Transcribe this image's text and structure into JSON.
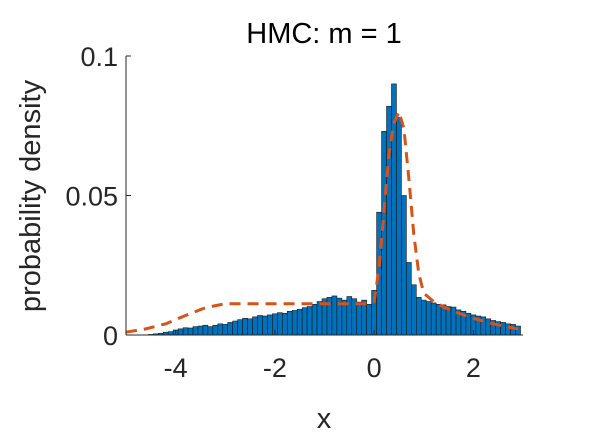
{
  "chart_data": {
    "type": "bar",
    "title": "HMC: m = 1",
    "xlabel": "x",
    "ylabel": "probability density",
    "xlim": [
      -5,
      3
    ],
    "ylim": [
      0,
      0.1
    ],
    "grid": false,
    "legend": "none",
    "x_ticks": [
      -4,
      -2,
      0,
      2
    ],
    "x_tick_labels": [
      "-4",
      "-2",
      "0",
      "2"
    ],
    "y_ticks": [
      0,
      0.05,
      0.1
    ],
    "y_tick_labels": [
      "0",
      "0.05",
      "0.1"
    ],
    "bar_width": 0.1,
    "bar_color": "#0072BD",
    "bar_edge_color": "#1a1a1a",
    "line_color": "#D95319",
    "series": [
      {
        "type": "bar",
        "x": [
          -4.5,
          -4.4,
          -4.3,
          -4.2,
          -4.1,
          -4.0,
          -3.9,
          -3.8,
          -3.7,
          -3.6,
          -3.5,
          -3.4,
          -3.3,
          -3.2,
          -3.1,
          -3.0,
          -2.9,
          -2.8,
          -2.7,
          -2.6,
          -2.5,
          -2.4,
          -2.3,
          -2.2,
          -2.1,
          -2.0,
          -1.9,
          -1.8,
          -1.7,
          -1.6,
          -1.5,
          -1.4,
          -1.3,
          -1.2,
          -1.1,
          -1.0,
          -0.9,
          -0.8,
          -0.7,
          -0.6,
          -0.5,
          -0.4,
          -0.3,
          -0.2,
          -0.1,
          0.0,
          0.1,
          0.2,
          0.3,
          0.4,
          0.5,
          0.6,
          0.7,
          0.8,
          0.9,
          1.0,
          1.1,
          1.2,
          1.3,
          1.4,
          1.5,
          1.6,
          1.7,
          1.8,
          1.9,
          2.0,
          2.1,
          2.2,
          2.3,
          2.4,
          2.5,
          2.6,
          2.7,
          2.8,
          2.9
        ],
        "values": [
          0.0002,
          0.0004,
          0.0006,
          0.001,
          0.0012,
          0.0018,
          0.0022,
          0.0026,
          0.0025,
          0.003,
          0.0032,
          0.0035,
          0.003,
          0.0035,
          0.004,
          0.0038,
          0.0045,
          0.005,
          0.0055,
          0.006,
          0.0058,
          0.0065,
          0.007,
          0.0068,
          0.0072,
          0.0076,
          0.008,
          0.0078,
          0.0085,
          0.0088,
          0.0092,
          0.0098,
          0.0102,
          0.011,
          0.012,
          0.013,
          0.0135,
          0.014,
          0.0132,
          0.0125,
          0.0138,
          0.013,
          0.0118,
          0.0125,
          0.011,
          0.016,
          0.044,
          0.073,
          0.082,
          0.09,
          0.078,
          0.05,
          0.026,
          0.018,
          0.0135,
          0.0125,
          0.012,
          0.0115,
          0.011,
          0.0108,
          0.0102,
          0.01,
          0.009,
          0.0085,
          0.0078,
          0.0072,
          0.0068,
          0.0065,
          0.0058,
          0.0052,
          0.0048,
          0.0045,
          0.004,
          0.0038,
          0.0032
        ]
      },
      {
        "type": "line",
        "style": "dashed",
        "x": [
          -5.0,
          -4.6,
          -4.2,
          -3.8,
          -3.4,
          -3.0,
          -2.6,
          -2.2,
          -1.8,
          -1.4,
          -1.0,
          -0.6,
          -0.2,
          0.0,
          0.1,
          0.2,
          0.3,
          0.4,
          0.5,
          0.6,
          0.7,
          0.8,
          0.9,
          1.0,
          1.2,
          1.4,
          1.6,
          1.8,
          2.0,
          2.2,
          2.4,
          2.6,
          2.8,
          2.9
        ],
        "values": [
          0.001,
          0.0022,
          0.004,
          0.007,
          0.0098,
          0.0112,
          0.0112,
          0.0112,
          0.0112,
          0.0112,
          0.0112,
          0.0112,
          0.0112,
          0.012,
          0.024,
          0.045,
          0.065,
          0.076,
          0.08,
          0.074,
          0.056,
          0.036,
          0.022,
          0.015,
          0.012,
          0.01,
          0.0085,
          0.0072,
          0.006,
          0.005,
          0.004,
          0.0032,
          0.0025,
          0.0022
        ]
      }
    ]
  }
}
